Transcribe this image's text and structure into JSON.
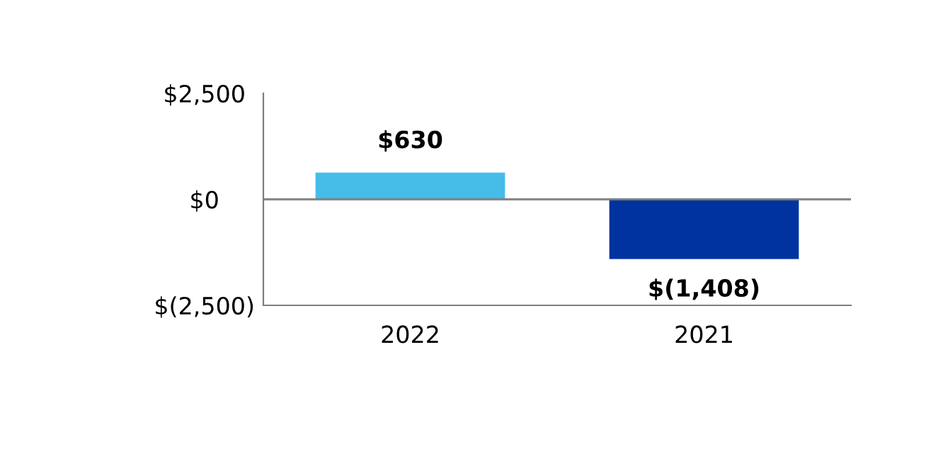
{
  "chart_data": {
    "type": "bar",
    "categories": [
      "2022",
      "2021"
    ],
    "values": [
      630,
      -1408
    ],
    "colors": [
      "#45bde8",
      "#0033a0"
    ],
    "value_labels": [
      "$630",
      "$(1,408)"
    ],
    "ylim": [
      -2500,
      2500
    ],
    "yticks": [
      {
        "value": 2500,
        "label": "$2,500"
      },
      {
        "value": 0,
        "label": "$0"
      },
      {
        "value": -2500,
        "label": "$(2,500)"
      }
    ],
    "ref_lines": [
      {
        "axis": "y",
        "value": 0,
        "color": "#7f7f7f"
      }
    ],
    "legend": false
  }
}
